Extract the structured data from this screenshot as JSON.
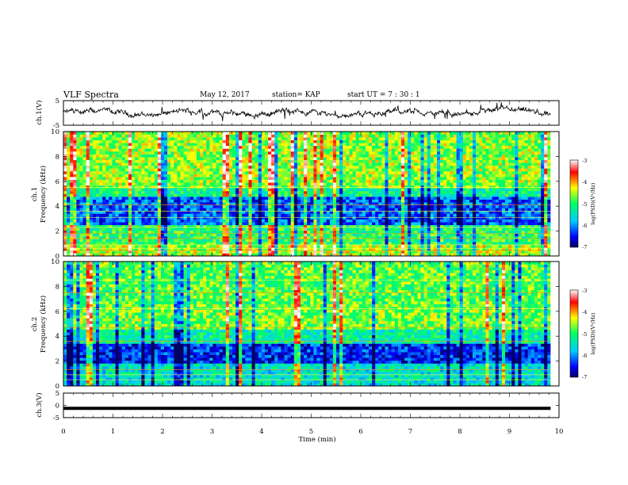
{
  "header": {
    "title": "VLF Spectra",
    "date": "May 12, 2017",
    "station": "station= KAP",
    "start": "start  UT  =   7 : 30 : 1"
  },
  "chart_data": [
    {
      "type": "line",
      "panel": "ch1-waveform",
      "ylabel": "ch.1(V)",
      "ylim": [
        -5,
        5
      ],
      "yticks": [
        "5",
        "-5"
      ],
      "xlim": [
        0,
        10
      ],
      "series_desc": "noisy trace around ~0 V"
    },
    {
      "type": "heatmap",
      "panel": "ch1-spectrogram",
      "ylabel_line1": "ch.1",
      "ylabel_line2": "Frequency (kHz)",
      "ylim": [
        0,
        10
      ],
      "yticks": [
        "0",
        "2",
        "4",
        "6",
        "8",
        "10"
      ],
      "xlim": [
        0,
        9.83
      ],
      "colorbar": {
        "label": "log(PSD)(V²/Hz)",
        "range": [
          -7,
          -3
        ],
        "ticks": [
          "-3",
          "-4",
          "-5",
          "-6",
          "-7"
        ]
      }
    },
    {
      "type": "heatmap",
      "panel": "ch2-spectrogram",
      "ylabel_line1": "ch.2",
      "ylabel_line2": "Frequency (kHz)",
      "ylim": [
        0,
        10
      ],
      "yticks": [
        "0",
        "2",
        "4",
        "6",
        "8",
        "10"
      ],
      "xlim": [
        0,
        9.83
      ],
      "colorbar": {
        "label": "log(PSD)(V²/Hz)",
        "range": [
          -7,
          -3
        ],
        "ticks": [
          "-3",
          "-4",
          "-5",
          "-6",
          "-7"
        ]
      }
    },
    {
      "type": "line",
      "panel": "ch3-waveform",
      "ylabel": "ch.3(V)",
      "ylim": [
        -5,
        5
      ],
      "yticks": [
        "5",
        "0",
        "-5"
      ],
      "xlim": [
        0,
        10
      ],
      "series_desc": "thick flat line near -1.2 V"
    }
  ],
  "xaxis": {
    "label": "Time (min)",
    "ticks": [
      "0",
      "1",
      "2",
      "3",
      "4",
      "5",
      "6",
      "7",
      "8",
      "9",
      "10"
    ]
  },
  "colors": {
    "axis": "#000000",
    "colormap": [
      "#000080",
      "#0000ff",
      "#00ffff",
      "#00ff00",
      "#ffff00",
      "#ff0000",
      "#ffffff"
    ]
  }
}
